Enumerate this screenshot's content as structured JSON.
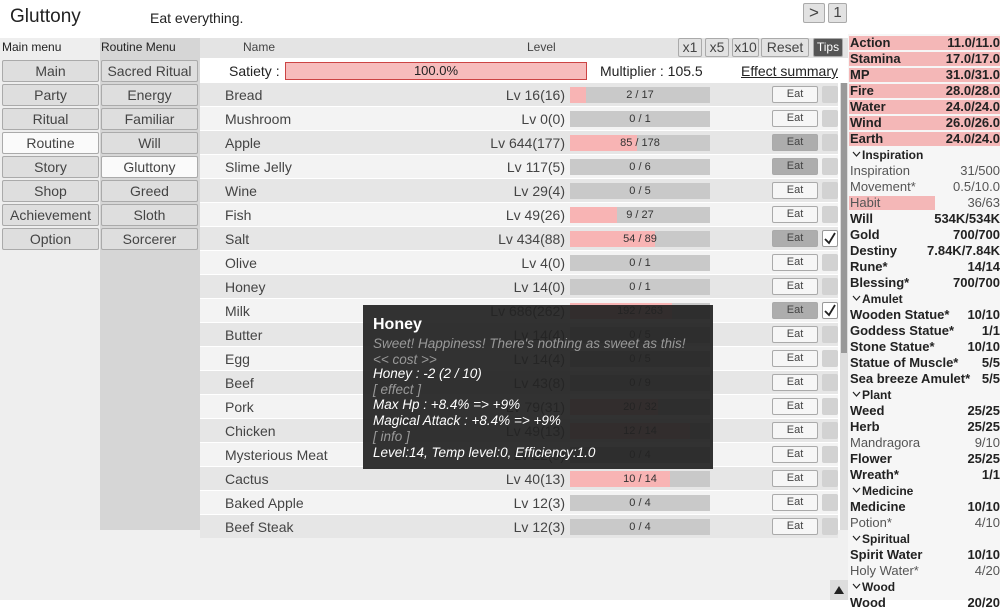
{
  "header": {
    "title": "Gluttony",
    "subtitle": "Eat everything.",
    "next_button": ">",
    "page_button": "1"
  },
  "main_menu": {
    "label": "Main menu",
    "items": [
      {
        "label": "Main",
        "selected": false
      },
      {
        "label": "Party",
        "selected": false
      },
      {
        "label": "Ritual",
        "selected": false
      },
      {
        "label": "Routine",
        "selected": true
      },
      {
        "label": "Story",
        "selected": false
      },
      {
        "label": "Shop",
        "selected": false
      },
      {
        "label": "Achievement",
        "selected": false
      },
      {
        "label": "Option",
        "selected": false
      }
    ]
  },
  "routine_menu": {
    "label": "Routine Menu",
    "items": [
      {
        "label": "Sacred Ritual",
        "selected": false
      },
      {
        "label": "Energy",
        "selected": false
      },
      {
        "label": "Familiar",
        "selected": false
      },
      {
        "label": "Will",
        "selected": false
      },
      {
        "label": "Gluttony",
        "selected": true
      },
      {
        "label": "Greed",
        "selected": false
      },
      {
        "label": "Sloth",
        "selected": false
      },
      {
        "label": "Sorcerer",
        "selected": false
      }
    ]
  },
  "table_header": {
    "name": "Name",
    "level": "Level",
    "buttons": [
      "x1",
      "x5",
      "x10",
      "Reset",
      "Tips"
    ]
  },
  "satiety": {
    "label": "Satiety :",
    "value": "100.0%",
    "multiplier": "Multiplier : 105.5",
    "effect_summary": "Effect summary"
  },
  "rows": [
    {
      "name": "Bread",
      "level": "Lv 16(16)",
      "progress": "2 / 17",
      "button": "Eat",
      "active": false,
      "checked": false
    },
    {
      "name": "Mushroom",
      "level": "Lv 0(0)",
      "progress": "0 / 1",
      "button": "Eat",
      "active": false,
      "checked": false
    },
    {
      "name": "Apple",
      "level": "Lv 644(177)",
      "progress": "85 / 178",
      "button": "Eat",
      "active": true,
      "checked": false
    },
    {
      "name": "Slime Jelly",
      "level": "Lv 117(5)",
      "progress": "0 / 6",
      "button": "Eat",
      "active": true,
      "checked": false
    },
    {
      "name": "Wine",
      "level": "Lv 29(4)",
      "progress": "0 / 5",
      "button": "Eat",
      "active": false,
      "checked": false
    },
    {
      "name": "Fish",
      "level": "Lv 49(26)",
      "progress": "9 / 27",
      "button": "Eat",
      "active": false,
      "checked": false
    },
    {
      "name": "Salt",
      "level": "Lv 434(88)",
      "progress": "54 / 89",
      "button": "Eat",
      "active": true,
      "checked": true
    },
    {
      "name": "Olive",
      "level": "Lv 4(0)",
      "progress": "0 / 1",
      "button": "Eat",
      "active": false,
      "checked": false
    },
    {
      "name": "Honey",
      "level": "Lv 14(0)",
      "progress": "0 / 1",
      "button": "Eat",
      "active": false,
      "checked": false
    },
    {
      "name": "Milk",
      "level": "Lv 686(262)",
      "progress": "192 / 263",
      "button": "Eat",
      "active": true,
      "checked": true
    },
    {
      "name": "Butter",
      "level": "Lv 14(4)",
      "progress": "0 / 5",
      "button": "Eat",
      "active": false,
      "checked": false
    },
    {
      "name": "Egg",
      "level": "Lv 14(4)",
      "progress": "0 / 5",
      "button": "Eat",
      "active": false,
      "checked": false
    },
    {
      "name": "Beef",
      "level": "Lv 43(8)",
      "progress": "0 / 9",
      "button": "Eat",
      "active": false,
      "checked": false
    },
    {
      "name": "Pork",
      "level": "Lv 79(31)",
      "progress": "20 / 32",
      "button": "Eat",
      "active": false,
      "checked": false
    },
    {
      "name": "Chicken",
      "level": "Lv 49(13)",
      "progress": "12 / 14",
      "button": "Eat",
      "active": false,
      "checked": false
    },
    {
      "name": "Mysterious Meat",
      "level": "Lv 22(3)",
      "progress": "0 / 4",
      "button": "Eat",
      "active": false,
      "checked": false
    },
    {
      "name": "Cactus",
      "level": "Lv 40(13)",
      "progress": "10 / 14",
      "button": "Eat",
      "active": false,
      "checked": false
    },
    {
      "name": "Baked Apple",
      "level": "Lv 12(3)",
      "progress": "0 / 4",
      "button": "Eat",
      "active": false,
      "checked": false
    },
    {
      "name": "Beef Steak",
      "level": "Lv 12(3)",
      "progress": "0 / 4",
      "button": "Eat",
      "active": false,
      "checked": false
    }
  ],
  "tooltip": {
    "title": "Honey",
    "lines": [
      {
        "text": "Sweet! Happiness! There's nothing as sweet as this!",
        "muted": true
      },
      {
        "text": "<< cost >>",
        "muted": true
      },
      {
        "text": "Honey : -2 (2 / 10)",
        "muted": false
      },
      {
        "text": "[ effect ]",
        "muted": true
      },
      {
        "text": "Max Hp : +8.4% => +9%",
        "muted": false
      },
      {
        "text": "Magical Attack : +8.4% => +9%",
        "muted": false
      },
      {
        "text": "[ info ]",
        "muted": true
      },
      {
        "text": "Level:14, Temp level:0, Efficiency:1.0",
        "muted": false
      }
    ]
  },
  "resources": [
    {
      "name": "Action",
      "value": "11.0/11.0",
      "bold": true,
      "highlight": true
    },
    {
      "name": "Stamina",
      "value": "17.0/17.0",
      "bold": true,
      "highlight": true
    },
    {
      "name": "MP",
      "value": "31.0/31.0",
      "bold": true,
      "highlight": true
    },
    {
      "name": "Fire",
      "value": "28.0/28.0",
      "bold": true,
      "highlight": true
    },
    {
      "name": "Water",
      "value": "24.0/24.0",
      "bold": true,
      "highlight": true
    },
    {
      "name": "Wind",
      "value": "26.0/26.0",
      "bold": true,
      "highlight": true
    },
    {
      "name": "Earth",
      "value": "24.0/24.0",
      "bold": true,
      "highlight": true
    },
    {
      "section": "Inspiration"
    },
    {
      "name": "Inspiration",
      "value": "31/500",
      "bold": false,
      "highlight": false
    },
    {
      "name": "Movement*",
      "value": "0.5/10.0",
      "bold": false,
      "highlight": false
    },
    {
      "name": "Habit",
      "value": "36/63",
      "bold": false,
      "highlight": true
    },
    {
      "name": "Will",
      "value": "534K/534K",
      "bold": true,
      "highlight": false
    },
    {
      "name": "Gold",
      "value": "700/700",
      "bold": true,
      "highlight": false
    },
    {
      "name": "Destiny",
      "value": "7.84K/7.84K",
      "bold": true,
      "highlight": false
    },
    {
      "name": "Rune*",
      "value": "14/14",
      "bold": true,
      "highlight": false
    },
    {
      "name": "Blessing*",
      "value": "700/700",
      "bold": true,
      "highlight": false
    },
    {
      "section": "Amulet"
    },
    {
      "name": "Wooden Statue*",
      "value": "10/10",
      "bold": true,
      "highlight": false
    },
    {
      "name": "Goddess Statue*",
      "value": "1/1",
      "bold": true,
      "highlight": false
    },
    {
      "name": "Stone Statue*",
      "value": "10/10",
      "bold": true,
      "highlight": false
    },
    {
      "name": "Statue of Muscle*",
      "value": "5/5",
      "bold": true,
      "highlight": false
    },
    {
      "name": "Sea breeze Amulet*",
      "value": "5/5",
      "bold": true,
      "highlight": false
    },
    {
      "section": "Plant"
    },
    {
      "name": "Weed",
      "value": "25/25",
      "bold": true,
      "highlight": false
    },
    {
      "name": "Herb",
      "value": "25/25",
      "bold": true,
      "highlight": false
    },
    {
      "name": "Mandragora",
      "value": "9/10",
      "bold": false,
      "highlight": false
    },
    {
      "name": "Flower",
      "value": "25/25",
      "bold": true,
      "highlight": false
    },
    {
      "name": "Wreath*",
      "value": "1/1",
      "bold": true,
      "highlight": false
    },
    {
      "section": "Medicine"
    },
    {
      "name": "Medicine",
      "value": "10/10",
      "bold": true,
      "highlight": false
    },
    {
      "name": "Potion*",
      "value": "4/10",
      "bold": false,
      "highlight": false
    },
    {
      "section": "Spiritual"
    },
    {
      "name": "Spirit Water",
      "value": "10/10",
      "bold": true,
      "highlight": false
    },
    {
      "name": "Holy Water*",
      "value": "4/20",
      "bold": false,
      "highlight": false
    },
    {
      "section": "Wood"
    },
    {
      "name": "Wood",
      "value": "20/20",
      "bold": true,
      "highlight": false
    }
  ]
}
